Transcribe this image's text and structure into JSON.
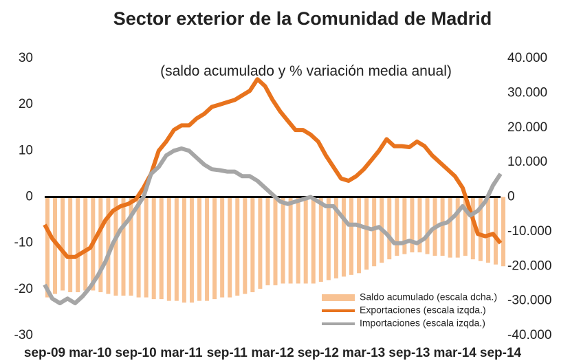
{
  "chart_data": {
    "type": "bar_line_dual",
    "title": "Sector exterior de la Comunidad de Madrid",
    "subtitle": "(saldo acumulado y % variación media anual)",
    "categories": [
      "sep-09",
      null,
      null,
      null,
      null,
      null,
      "mar-10",
      null,
      null,
      null,
      null,
      null,
      "sep-10",
      null,
      null,
      null,
      null,
      null,
      "mar-11",
      null,
      null,
      null,
      null,
      null,
      "sep-11",
      null,
      null,
      null,
      null,
      null,
      "mar-12",
      null,
      null,
      null,
      null,
      null,
      "sep-12",
      null,
      null,
      null,
      null,
      null,
      "mar-13",
      null,
      null,
      null,
      null,
      null,
      "sep-13",
      null,
      null,
      null,
      null,
      null,
      "mar-14",
      null,
      null,
      null,
      null,
      null,
      "sep-14"
    ],
    "series": [
      {
        "name": "Saldo acumulado (escala dcha.)",
        "color": "#f8c293",
        "axis": "y2",
        "values": [
          -29000,
          -28000,
          -27000,
          -27500,
          -27500,
          -27000,
          -27000,
          -27500,
          -28000,
          -28500,
          -28500,
          -28500,
          -29000,
          -29000,
          -29500,
          -29500,
          -30000,
          -30000,
          -30500,
          -30500,
          -30000,
          -30000,
          -29500,
          -29000,
          -29000,
          -28500,
          -28000,
          -27500,
          -26500,
          -25500,
          -25500,
          -25000,
          -25000,
          -25000,
          -25000,
          -25000,
          -24500,
          -24000,
          -23500,
          -23000,
          -22500,
          -22000,
          -21000,
          -20000,
          -19000,
          -18000,
          -17000,
          -16500,
          -16000,
          -16000,
          -16500,
          -17000,
          -17000,
          -17500,
          -17500,
          -17000,
          -18000,
          -18500,
          -19000,
          -19500,
          -20000
        ]
      },
      {
        "name": "Exportaciones (escala izqda.)",
        "color": "#e8731d",
        "values": [
          -6,
          -9,
          -11,
          -13,
          -13,
          -12,
          -11,
          -8,
          -5,
          -3,
          -2,
          -1.5,
          -0.5,
          2,
          5,
          10,
          12,
          14.5,
          15.5,
          15.5,
          17,
          18,
          19.5,
          20,
          20.5,
          21,
          22,
          23,
          25.5,
          24,
          21,
          18.5,
          16.5,
          14.5,
          14.5,
          13.5,
          12,
          9,
          6.5,
          4,
          3.5,
          4.5,
          6,
          8,
          10,
          12.5,
          11,
          11,
          10.8,
          12,
          11,
          9,
          7.5,
          6,
          4.5,
          2,
          -3,
          -8,
          -8.5,
          -8,
          -10
        ]
      },
      {
        "name": "Importaciones (escala izqda.)",
        "color": "#a6a6a6",
        "values": [
          -19,
          -22,
          -23,
          -22,
          -23,
          -21.5,
          -19.5,
          -17,
          -14,
          -10,
          -7,
          -5,
          -2.5,
          0,
          5,
          6.5,
          9,
          10,
          10.5,
          10,
          8.5,
          7,
          6,
          5.8,
          5.5,
          5.5,
          4.5,
          4.5,
          3.5,
          2,
          0.5,
          -1,
          -1.5,
          -1,
          -0.5,
          0,
          -1,
          -2,
          -2,
          -4,
          -6,
          -6,
          -6.5,
          -7,
          -6.5,
          -8,
          -10,
          -10,
          -9.5,
          -10,
          -9,
          -7,
          -6,
          -5.5,
          -4,
          -2,
          -4,
          -3,
          -1,
          2.5,
          5
        ]
      }
    ],
    "ylim": [
      -30,
      30
    ],
    "yticks": [
      30,
      20,
      10,
      0,
      -10,
      -20,
      -30
    ],
    "y2lim": [
      -40000,
      40000
    ],
    "y2ticks": [
      {
        "value": 40000,
        "label": "40.000"
      },
      {
        "value": 30000,
        "label": "30.000"
      },
      {
        "value": 20000,
        "label": "20.000"
      },
      {
        "value": 10000,
        "label": "10.000"
      },
      {
        "value": 0,
        "label": "0"
      },
      {
        "value": -10000,
        "label": "-10.000"
      },
      {
        "value": -20000,
        "label": "-20.000"
      },
      {
        "value": -30000,
        "label": "-30.000"
      },
      {
        "value": -40000,
        "label": "-40.000"
      }
    ],
    "grid": false,
    "legend": "lower right"
  }
}
